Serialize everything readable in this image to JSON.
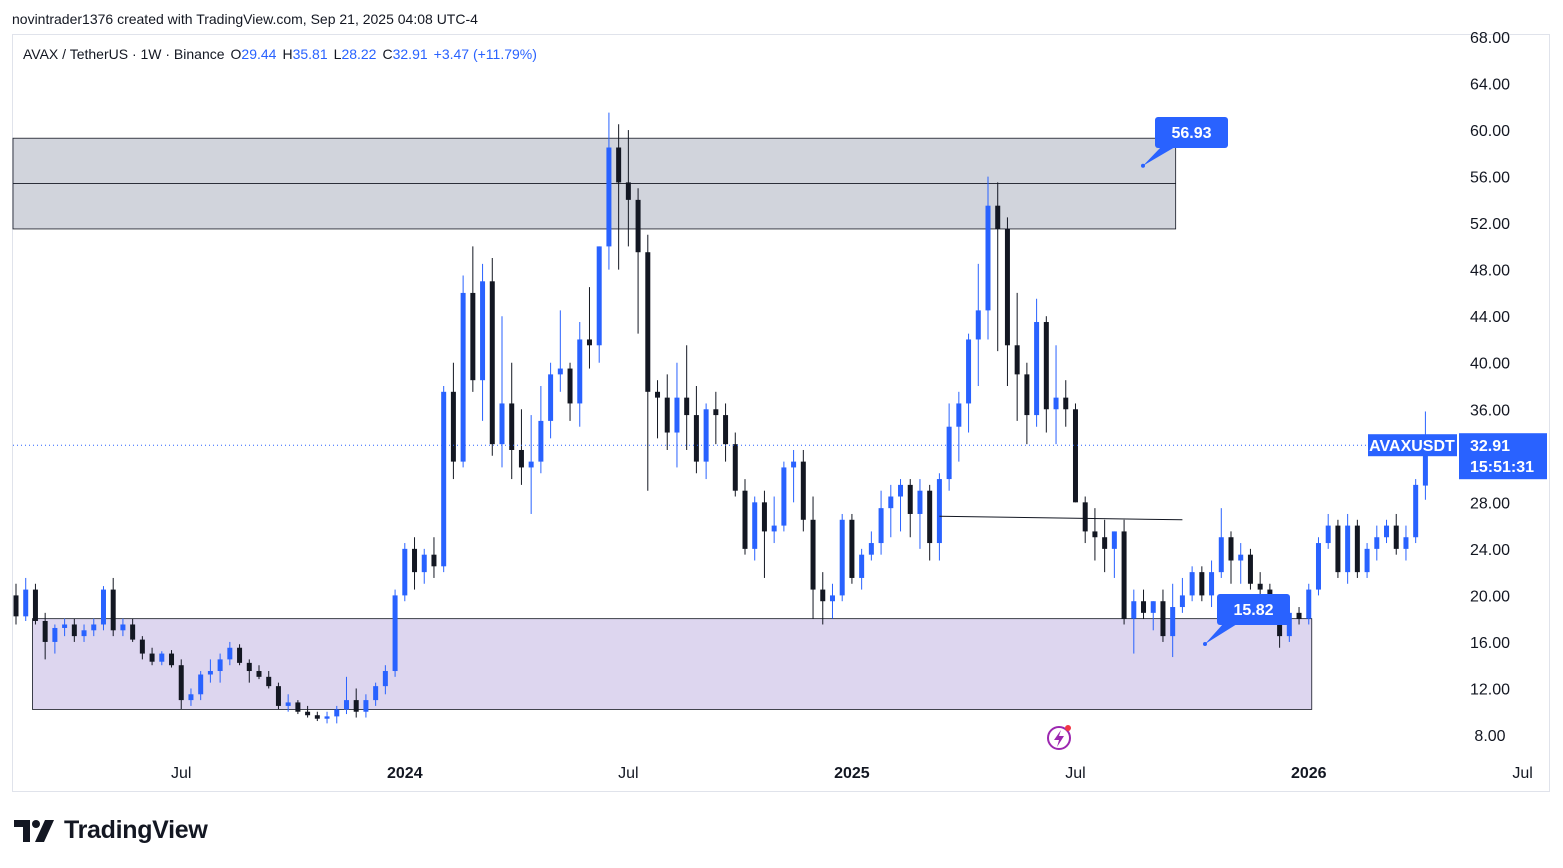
{
  "header": {
    "credit": "novintrader1376 created with TradingView.com, Sep 21, 2025 04:08 UTC-4"
  },
  "legend": {
    "symbol": "AVAX / TetherUS · 1W · Binance",
    "o_label": "O",
    "o": "29.44",
    "h_label": "H",
    "h": "35.81",
    "l_label": "L",
    "l": "28.22",
    "c_label": "C",
    "c": "32.91",
    "change": "+3.47 (+11.79%)"
  },
  "price_tag": {
    "symbol": "AVAXUSDT",
    "price": "32.91",
    "countdown": "15:51:31"
  },
  "targets": [
    {
      "label": "56.93",
      "value": 56.93
    },
    {
      "label": "15.82",
      "value": 15.82
    }
  ],
  "zones": [
    {
      "name": "supply-zone",
      "from": 51.5,
      "to": 59.3,
      "mid": 55.4,
      "start": 0,
      "end": 119,
      "color": "#d1d4dc"
    },
    {
      "name": "demand-zone",
      "from": 10.2,
      "to": 18.0,
      "start": 2,
      "end": 133,
      "color": "#ddd6ef"
    }
  ],
  "trendline": {
    "start": 95,
    "y1": 26.8,
    "end": 120,
    "y2": 26.5
  },
  "footer": {
    "brand": "TradingView"
  },
  "colors": {
    "up": "#2962ff",
    "down": "#131722",
    "price_line": "#2962ff",
    "target": "#2962ff"
  },
  "chart_data": {
    "type": "candlestick",
    "timeframe": "1W",
    "y_ticks": [
      "8.00",
      "12.00",
      "16.00",
      "20.00",
      "24.00",
      "28.00",
      "32.00",
      "36.00",
      "40.00",
      "44.00",
      "48.00",
      "52.00",
      "56.00",
      "60.00",
      "64.00",
      "68.00"
    ],
    "x_ticks": [
      {
        "label": "Jul",
        "bar": 17,
        "bold": false
      },
      {
        "label": "2024",
        "bar": 40,
        "bold": true
      },
      {
        "label": "Jul",
        "bar": 63,
        "bold": false
      },
      {
        "label": "2025",
        "bar": 86,
        "bold": true
      },
      {
        "label": "Jul",
        "bar": 109,
        "bold": false
      },
      {
        "label": "2026",
        "bar": 133,
        "bold": true
      },
      {
        "label": "Jul",
        "bar": 155,
        "bold": false
      }
    ],
    "ylim": [
      5.5,
      69
    ],
    "last_price": 32.91,
    "candles": [
      [
        20.0,
        21.0,
        17.5,
        18.2
      ],
      [
        18.2,
        21.5,
        17.8,
        20.5
      ],
      [
        20.5,
        21.0,
        17.5,
        17.8
      ],
      [
        17.8,
        18.5,
        14.5,
        16.0
      ],
      [
        16.0,
        17.5,
        15.0,
        17.2
      ],
      [
        17.2,
        18.0,
        16.5,
        17.5
      ],
      [
        17.5,
        18.0,
        16.0,
        16.5
      ],
      [
        16.5,
        17.5,
        16.0,
        17.0
      ],
      [
        17.0,
        18.0,
        16.5,
        17.5
      ],
      [
        17.5,
        20.8,
        17.0,
        20.5
      ],
      [
        20.5,
        21.5,
        16.5,
        17.0
      ],
      [
        17.0,
        18.0,
        16.5,
        17.5
      ],
      [
        17.5,
        18.0,
        16.0,
        16.2
      ],
      [
        16.2,
        16.5,
        14.5,
        15.0
      ],
      [
        15.0,
        15.5,
        14.0,
        14.3
      ],
      [
        14.3,
        15.2,
        14.0,
        15.0
      ],
      [
        15.0,
        15.3,
        13.8,
        14.0
      ],
      [
        14.0,
        14.5,
        10.2,
        11.0
      ],
      [
        11.0,
        12.0,
        10.5,
        11.5
      ],
      [
        11.5,
        13.5,
        11.0,
        13.2
      ],
      [
        13.2,
        14.5,
        12.5,
        13.5
      ],
      [
        13.5,
        15.0,
        12.5,
        14.5
      ],
      [
        14.5,
        16.0,
        14.0,
        15.5
      ],
      [
        15.5,
        15.8,
        14.0,
        14.2
      ],
      [
        14.2,
        14.5,
        12.5,
        13.5
      ],
      [
        13.5,
        14.0,
        12.8,
        13.0
      ],
      [
        13.0,
        13.5,
        12.0,
        12.2
      ],
      [
        12.2,
        12.5,
        10.2,
        10.5
      ],
      [
        10.5,
        11.5,
        10.0,
        10.8
      ],
      [
        10.8,
        11.0,
        9.8,
        10.0
      ],
      [
        10.0,
        10.5,
        9.5,
        9.7
      ],
      [
        9.7,
        10.0,
        9.2,
        9.4
      ],
      [
        9.4,
        10.0,
        9.0,
        9.6
      ],
      [
        9.6,
        10.5,
        9.0,
        10.2
      ],
      [
        10.2,
        13.0,
        9.8,
        11.0
      ],
      [
        11.0,
        12.0,
        9.5,
        10.0
      ],
      [
        10.0,
        11.5,
        9.5,
        11.0
      ],
      [
        11.0,
        12.5,
        10.5,
        12.2
      ],
      [
        12.2,
        14.0,
        11.5,
        13.5
      ],
      [
        13.5,
        20.5,
        13.0,
        20.0
      ],
      [
        20.0,
        24.5,
        19.5,
        24.0
      ],
      [
        24.0,
        25.0,
        20.5,
        22.0
      ],
      [
        22.0,
        24.0,
        21.0,
        23.5
      ],
      [
        23.5,
        25.0,
        21.5,
        22.5
      ],
      [
        22.5,
        38.0,
        22.0,
        37.5
      ],
      [
        37.5,
        40.0,
        30.0,
        31.5
      ],
      [
        31.5,
        47.5,
        31.0,
        46.0
      ],
      [
        46.0,
        50.0,
        37.5,
        38.5
      ],
      [
        38.5,
        48.5,
        35.0,
        47.0
      ],
      [
        47.0,
        49.0,
        32.0,
        33.0
      ],
      [
        33.0,
        44.0,
        31.0,
        36.5
      ],
      [
        36.5,
        40.0,
        30.0,
        32.5
      ],
      [
        32.5,
        36.0,
        29.5,
        31.0
      ],
      [
        31.0,
        35.5,
        27.0,
        31.5
      ],
      [
        31.5,
        38.0,
        30.5,
        35.0
      ],
      [
        35.0,
        40.0,
        33.5,
        39.0
      ],
      [
        39.0,
        44.5,
        37.5,
        39.5
      ],
      [
        39.5,
        40.0,
        35.0,
        36.5
      ],
      [
        36.5,
        43.5,
        34.5,
        42.0
      ],
      [
        42.0,
        46.5,
        39.5,
        41.5
      ],
      [
        41.5,
        50.0,
        40.0,
        50.0
      ],
      [
        50.0,
        61.5,
        48.0,
        58.5
      ],
      [
        58.5,
        60.5,
        48.0,
        55.5
      ],
      [
        55.5,
        60.0,
        50.0,
        54.0
      ],
      [
        54.0,
        55.0,
        42.5,
        49.5
      ],
      [
        49.5,
        51.0,
        29.0,
        37.5
      ],
      [
        37.5,
        38.5,
        33.5,
        37.0
      ],
      [
        37.0,
        39.0,
        32.5,
        34.0
      ],
      [
        34.0,
        40.0,
        31.0,
        37.0
      ],
      [
        37.0,
        41.5,
        32.5,
        35.5
      ],
      [
        35.5,
        38.0,
        30.5,
        31.5
      ],
      [
        31.5,
        36.5,
        30.0,
        36.0
      ],
      [
        36.0,
        37.5,
        33.0,
        35.5
      ],
      [
        35.5,
        36.5,
        31.5,
        33.0
      ],
      [
        33.0,
        34.0,
        28.5,
        29.0
      ],
      [
        29.0,
        30.0,
        23.5,
        24.0
      ],
      [
        24.0,
        28.5,
        23.0,
        28.0
      ],
      [
        28.0,
        29.0,
        21.5,
        25.5
      ],
      [
        25.5,
        28.5,
        24.5,
        26.0
      ],
      [
        26.0,
        31.5,
        25.5,
        31.0
      ],
      [
        31.0,
        32.5,
        28.0,
        31.5
      ],
      [
        31.5,
        32.5,
        25.5,
        26.5
      ],
      [
        26.5,
        28.5,
        18.0,
        20.5
      ],
      [
        20.5,
        22.0,
        17.5,
        19.5
      ],
      [
        19.5,
        21.0,
        18.0,
        20.0
      ],
      [
        20.0,
        27.0,
        19.5,
        26.5
      ],
      [
        26.5,
        27.0,
        21.0,
        21.5
      ],
      [
        21.5,
        24.0,
        20.5,
        23.5
      ],
      [
        23.5,
        25.5,
        23.0,
        24.5
      ],
      [
        24.5,
        29.0,
        23.5,
        27.5
      ],
      [
        27.5,
        29.5,
        25.0,
        28.5
      ],
      [
        28.5,
        30.0,
        25.5,
        29.5
      ],
      [
        29.5,
        30.0,
        25.0,
        27.0
      ],
      [
        27.0,
        30.0,
        24.0,
        29.0
      ],
      [
        29.0,
        29.5,
        23.0,
        24.5
      ],
      [
        24.5,
        30.5,
        23.0,
        30.0
      ],
      [
        30.0,
        36.5,
        29.0,
        34.5
      ],
      [
        34.5,
        37.5,
        31.5,
        36.5
      ],
      [
        36.5,
        42.5,
        34.0,
        42.0
      ],
      [
        42.0,
        48.5,
        38.0,
        44.5
      ],
      [
        44.5,
        56.0,
        42.0,
        53.5
      ],
      [
        53.5,
        55.5,
        41.0,
        51.5
      ],
      [
        51.5,
        52.5,
        38.0,
        41.5
      ],
      [
        41.5,
        46.0,
        35.0,
        39.0
      ],
      [
        39.0,
        40.0,
        33.0,
        35.5
      ],
      [
        35.5,
        45.5,
        34.5,
        43.5
      ],
      [
        43.5,
        44.0,
        34.0,
        36.0
      ],
      [
        36.0,
        41.5,
        33.0,
        37.0
      ],
      [
        37.0,
        38.5,
        34.5,
        36.0
      ],
      [
        36.0,
        36.5,
        28.0,
        28.0
      ],
      [
        28.0,
        28.5,
        24.5,
        25.5
      ],
      [
        25.5,
        27.5,
        23.0,
        25.0
      ],
      [
        25.0,
        26.5,
        22.0,
        24.0
      ],
      [
        24.0,
        25.5,
        21.5,
        25.5
      ],
      [
        25.5,
        26.5,
        17.5,
        18.0
      ],
      [
        18.0,
        20.5,
        15.0,
        19.5
      ],
      [
        19.5,
        20.5,
        18.0,
        18.5
      ],
      [
        18.5,
        19.5,
        17.0,
        19.5
      ],
      [
        19.5,
        20.5,
        16.0,
        16.5
      ],
      [
        16.5,
        21.0,
        14.7,
        19.0
      ],
      [
        19.0,
        21.5,
        18.5,
        20.0
      ],
      [
        20.0,
        22.5,
        19.5,
        22.0
      ],
      [
        22.0,
        22.5,
        19.5,
        20.0
      ],
      [
        20.0,
        23.0,
        19.0,
        22.0
      ],
      [
        22.0,
        27.5,
        21.5,
        25.0
      ],
      [
        25.0,
        25.5,
        21.0,
        23.0
      ],
      [
        23.0,
        24.5,
        21.0,
        23.5
      ],
      [
        23.5,
        24.0,
        20.5,
        21.0
      ],
      [
        21.0,
        22.0,
        18.5,
        20.5
      ],
      [
        20.5,
        21.0,
        18.0,
        18.5
      ],
      [
        18.5,
        20.0,
        15.5,
        16.5
      ],
      [
        16.5,
        19.0,
        16.0,
        18.5
      ],
      [
        18.5,
        19.0,
        17.5,
        18.0
      ],
      [
        18.0,
        21.0,
        17.5,
        20.5
      ],
      [
        20.5,
        25.0,
        20.0,
        24.5
      ],
      [
        24.5,
        27.0,
        24.0,
        26.0
      ],
      [
        26.0,
        26.5,
        21.5,
        22.0
      ],
      [
        22.0,
        27.0,
        21.0,
        26.0
      ],
      [
        26.0,
        26.5,
        21.5,
        22.0
      ],
      [
        22.0,
        24.5,
        21.5,
        24.0
      ],
      [
        24.0,
        26.0,
        23.0,
        25.0
      ],
      [
        25.0,
        26.5,
        24.5,
        26.0
      ],
      [
        26.0,
        27.0,
        23.5,
        24.0
      ],
      [
        24.0,
        26.0,
        23.0,
        25.0
      ],
      [
        25.0,
        30.0,
        24.5,
        29.5
      ],
      [
        29.44,
        35.81,
        28.22,
        32.91
      ]
    ]
  }
}
